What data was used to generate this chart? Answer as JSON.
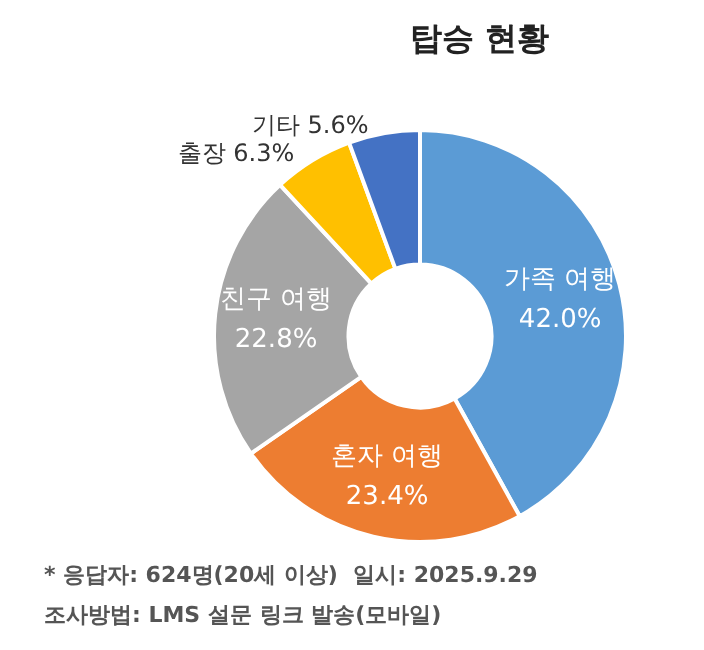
{
  "chart_data": {
    "type": "donut",
    "title": "탑승 현황",
    "categories": [
      "가족 여행",
      "혼자 여행",
      "친구 여행",
      "출장",
      "기타"
    ],
    "values": [
      42.0,
      23.4,
      22.8,
      6.3,
      5.6
    ],
    "value_labels": [
      "42.0%",
      "23.4%",
      "22.8%",
      "6.3%",
      "5.6%"
    ],
    "colors": [
      "#5b9bd5",
      "#ed7d31",
      "#a5a5a5",
      "#ffc000",
      "#4472c4"
    ],
    "legend": false,
    "annotations": [
      "* 응답자: 624명(20세 이상)  일시: 2025.9.29",
      "조사방법: LMS 설문 링크 발송(모바일)"
    ]
  }
}
